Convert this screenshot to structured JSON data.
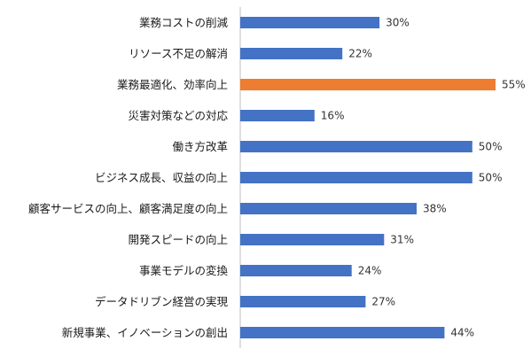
{
  "chart_data": {
    "type": "bar",
    "orientation": "horizontal",
    "categories": [
      "業務コストの削減",
      "リソース不足の解消",
      "業務最適化、効率向上",
      "災害対策などの対応",
      "働き方改革",
      "ビジネス成長、収益の向上",
      "顧客サービスの向上、顧客満足度の向上",
      "開発スピードの向上",
      "事業モデルの変換",
      "データドリブン経営の実現",
      "新規事業、イノベーションの創出"
    ],
    "values": [
      30,
      22,
      55,
      16,
      50,
      50,
      38,
      31,
      24,
      27,
      44
    ],
    "value_labels": [
      "30%",
      "22%",
      "55%",
      "16%",
      "50%",
      "50%",
      "38%",
      "31%",
      "24%",
      "27%",
      "44%"
    ],
    "highlight_index": 2,
    "colors": {
      "bar": "#4472C4",
      "highlight": "#ED7D31",
      "axis": "#BFBFBF"
    },
    "xlim": [
      0,
      60
    ],
    "grid": false,
    "legend": false
  }
}
